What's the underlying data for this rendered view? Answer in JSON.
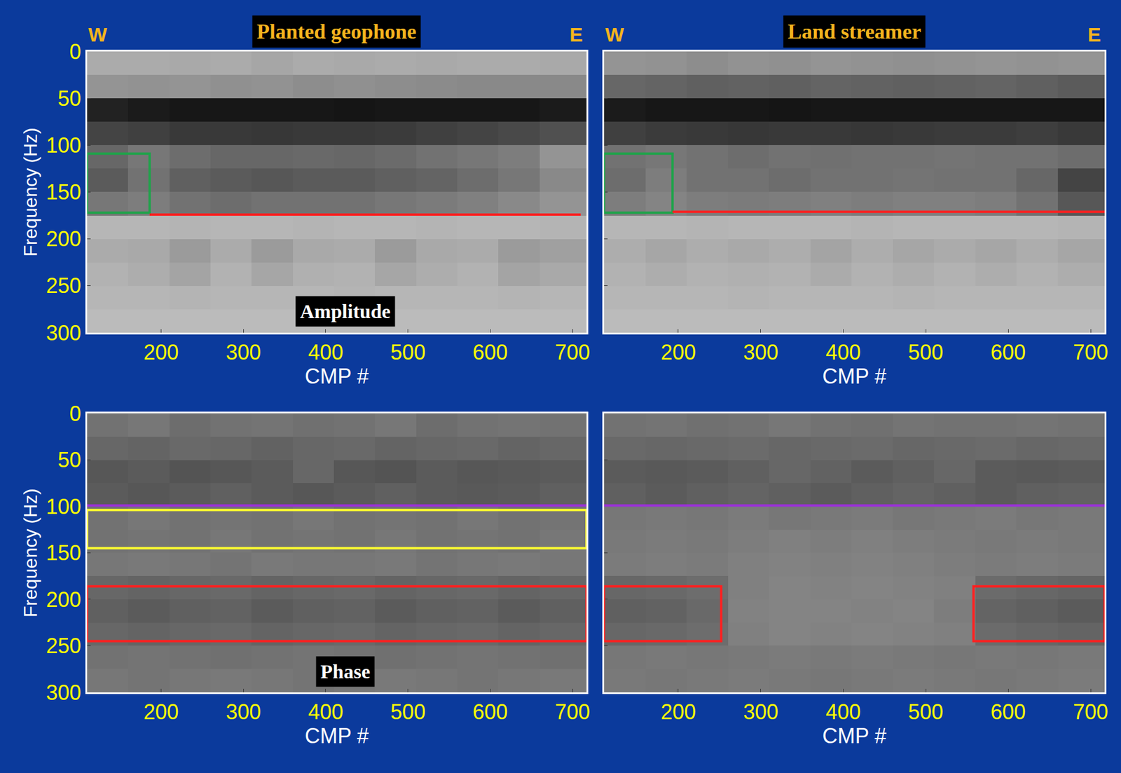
{
  "chart_data": [
    {
      "type": "heatmap",
      "title": "Planted geophone",
      "direction_labels": [
        "W",
        "E"
      ],
      "panel_label": "Amplitude",
      "xlabel": "CMP #",
      "ylabel": "Frequency (Hz)",
      "xlim": [
        110,
        717
      ],
      "ylim": [
        300,
        0
      ],
      "xticks": [
        200,
        300,
        400,
        500,
        600,
        700
      ],
      "yticks": [
        0,
        50,
        100,
        150,
        200,
        250,
        300
      ],
      "grid": false,
      "zlim": [
        0,
        1
      ],
      "cmp_edges": [
        110,
        160,
        210,
        260,
        310,
        360,
        410,
        460,
        510,
        560,
        610,
        660,
        717
      ],
      "freq_edges": [
        0,
        25,
        50,
        75,
        100,
        125,
        150,
        175,
        200,
        225,
        250,
        275,
        300
      ],
      "cells": [
        [
          0.25,
          0.25,
          0.26,
          0.25,
          0.27,
          0.25,
          0.26,
          0.25,
          0.26,
          0.25,
          0.25,
          0.26
        ],
        [
          0.35,
          0.36,
          0.35,
          0.37,
          0.36,
          0.38,
          0.37,
          0.38,
          0.39,
          0.4,
          0.4,
          0.4
        ],
        [
          0.85,
          0.88,
          0.9,
          0.9,
          0.9,
          0.9,
          0.91,
          0.9,
          0.9,
          0.9,
          0.9,
          0.88
        ],
        [
          0.7,
          0.72,
          0.75,
          0.75,
          0.76,
          0.75,
          0.75,
          0.74,
          0.72,
          0.7,
          0.68,
          0.65
        ],
        [
          0.55,
          0.48,
          0.52,
          0.55,
          0.55,
          0.54,
          0.55,
          0.53,
          0.5,
          0.48,
          0.45,
          0.35
        ],
        [
          0.6,
          0.5,
          0.58,
          0.6,
          0.62,
          0.6,
          0.6,
          0.58,
          0.56,
          0.52,
          0.48,
          0.4
        ],
        [
          0.48,
          0.45,
          0.5,
          0.52,
          0.5,
          0.5,
          0.5,
          0.48,
          0.46,
          0.44,
          0.4,
          0.35
        ],
        [
          0.2,
          0.2,
          0.21,
          0.2,
          0.2,
          0.21,
          0.2,
          0.2,
          0.21,
          0.2,
          0.2,
          0.21
        ],
        [
          0.25,
          0.26,
          0.32,
          0.25,
          0.32,
          0.26,
          0.25,
          0.32,
          0.26,
          0.25,
          0.32,
          0.3
        ],
        [
          0.22,
          0.24,
          0.28,
          0.22,
          0.27,
          0.23,
          0.22,
          0.27,
          0.24,
          0.22,
          0.28,
          0.26
        ],
        [
          0.2,
          0.2,
          0.21,
          0.2,
          0.2,
          0.2,
          0.21,
          0.2,
          0.2,
          0.2,
          0.21,
          0.2
        ],
        [
          0.18,
          0.18,
          0.18,
          0.18,
          0.18,
          0.18,
          0.18,
          0.18,
          0.18,
          0.18,
          0.18,
          0.18
        ]
      ],
      "boxes": [
        {
          "x": [
            110,
            186
          ],
          "y": [
            109,
            172
          ],
          "color": "#1fa34a"
        }
      ],
      "lines": [
        {
          "x": [
            186,
            710
          ],
          "y": 174,
          "color": "#ff2020"
        }
      ]
    },
    {
      "type": "heatmap",
      "title": "Land streamer",
      "direction_labels": [
        "W",
        "E"
      ],
      "xlabel": "CMP #",
      "xlim": [
        110,
        717
      ],
      "ylim": [
        300,
        0
      ],
      "xticks": [
        200,
        300,
        400,
        500,
        600,
        700
      ],
      "yticks": [
        0,
        50,
        100,
        150,
        200,
        250,
        300
      ],
      "tick_labels": "x",
      "grid": false,
      "zlim": [
        0,
        1
      ],
      "cmp_edges": [
        110,
        160,
        210,
        260,
        310,
        360,
        410,
        460,
        510,
        560,
        610,
        660,
        717
      ],
      "freq_edges": [
        0,
        25,
        50,
        75,
        100,
        125,
        150,
        175,
        200,
        225,
        250,
        275,
        300
      ],
      "cells": [
        [
          0.35,
          0.36,
          0.38,
          0.36,
          0.37,
          0.35,
          0.36,
          0.37,
          0.36,
          0.35,
          0.36,
          0.35
        ],
        [
          0.55,
          0.56,
          0.58,
          0.57,
          0.58,
          0.56,
          0.57,
          0.58,
          0.57,
          0.56,
          0.58,
          0.6
        ],
        [
          0.88,
          0.9,
          0.9,
          0.9,
          0.91,
          0.9,
          0.9,
          0.9,
          0.9,
          0.9,
          0.9,
          0.9
        ],
        [
          0.72,
          0.74,
          0.75,
          0.76,
          0.75,
          0.75,
          0.76,
          0.75,
          0.74,
          0.74,
          0.73,
          0.75
        ],
        [
          0.5,
          0.48,
          0.5,
          0.52,
          0.5,
          0.51,
          0.5,
          0.5,
          0.49,
          0.5,
          0.5,
          0.52
        ],
        [
          0.52,
          0.45,
          0.5,
          0.5,
          0.52,
          0.5,
          0.5,
          0.49,
          0.5,
          0.5,
          0.55,
          0.7
        ],
        [
          0.45,
          0.42,
          0.45,
          0.46,
          0.45,
          0.44,
          0.45,
          0.44,
          0.44,
          0.45,
          0.5,
          0.62
        ],
        [
          0.2,
          0.2,
          0.21,
          0.2,
          0.2,
          0.2,
          0.21,
          0.2,
          0.2,
          0.2,
          0.2,
          0.21
        ],
        [
          0.24,
          0.27,
          0.24,
          0.26,
          0.24,
          0.28,
          0.24,
          0.27,
          0.25,
          0.27,
          0.24,
          0.27
        ],
        [
          0.22,
          0.24,
          0.22,
          0.23,
          0.22,
          0.25,
          0.22,
          0.24,
          0.22,
          0.24,
          0.22,
          0.24
        ],
        [
          0.2,
          0.2,
          0.2,
          0.21,
          0.2,
          0.2,
          0.2,
          0.21,
          0.2,
          0.2,
          0.2,
          0.2
        ],
        [
          0.18,
          0.18,
          0.18,
          0.18,
          0.18,
          0.18,
          0.18,
          0.18,
          0.18,
          0.18,
          0.18,
          0.18
        ]
      ],
      "boxes": [
        {
          "x": [
            110,
            193
          ],
          "y": [
            109,
            172
          ],
          "color": "#1fa34a"
        }
      ],
      "lines": [
        {
          "x": [
            193,
            717
          ],
          "y": 171,
          "color": "#ff2020"
        }
      ]
    },
    {
      "type": "heatmap",
      "panel_label": "Phase",
      "xlabel": "CMP #",
      "ylabel": "Frequency (Hz)",
      "xlim": [
        110,
        717
      ],
      "ylim": [
        300,
        0
      ],
      "xticks": [
        200,
        300,
        400,
        500,
        600,
        700
      ],
      "yticks": [
        0,
        50,
        100,
        150,
        200,
        250,
        300
      ],
      "grid": false,
      "zlim": [
        0,
        1
      ],
      "cmp_edges": [
        110,
        160,
        210,
        260,
        310,
        360,
        410,
        460,
        510,
        560,
        610,
        660,
        717
      ],
      "freq_edges": [
        0,
        25,
        50,
        75,
        100,
        125,
        150,
        175,
        200,
        225,
        250,
        275,
        300
      ],
      "cells": [
        [
          0.5,
          0.48,
          0.52,
          0.5,
          0.49,
          0.51,
          0.5,
          0.48,
          0.52,
          0.5,
          0.49,
          0.5
        ],
        [
          0.55,
          0.56,
          0.54,
          0.55,
          0.57,
          0.55,
          0.54,
          0.56,
          0.55,
          0.54,
          0.56,
          0.55
        ],
        [
          0.62,
          0.6,
          0.63,
          0.62,
          0.6,
          0.55,
          0.62,
          0.63,
          0.6,
          0.62,
          0.61,
          0.6
        ],
        [
          0.6,
          0.62,
          0.6,
          0.58,
          0.6,
          0.62,
          0.6,
          0.58,
          0.6,
          0.61,
          0.6,
          0.58
        ],
        [
          0.5,
          0.48,
          0.5,
          0.49,
          0.5,
          0.48,
          0.5,
          0.49,
          0.5,
          0.48,
          0.5,
          0.49
        ],
        [
          0.5,
          0.49,
          0.5,
          0.48,
          0.5,
          0.49,
          0.5,
          0.48,
          0.5,
          0.49,
          0.5,
          0.48
        ],
        [
          0.48,
          0.47,
          0.48,
          0.49,
          0.47,
          0.48,
          0.48,
          0.47,
          0.49,
          0.48,
          0.47,
          0.48
        ],
        [
          0.55,
          0.56,
          0.55,
          0.54,
          0.56,
          0.55,
          0.54,
          0.56,
          0.55,
          0.54,
          0.56,
          0.55
        ],
        [
          0.58,
          0.6,
          0.58,
          0.57,
          0.6,
          0.58,
          0.57,
          0.6,
          0.58,
          0.57,
          0.6,
          0.58
        ],
        [
          0.55,
          0.56,
          0.55,
          0.54,
          0.56,
          0.55,
          0.54,
          0.56,
          0.55,
          0.54,
          0.56,
          0.55
        ],
        [
          0.5,
          0.49,
          0.5,
          0.51,
          0.5,
          0.49,
          0.5,
          0.51,
          0.5,
          0.49,
          0.5,
          0.51
        ],
        [
          0.48,
          0.49,
          0.48,
          0.47,
          0.48,
          0.49,
          0.48,
          0.47,
          0.48,
          0.49,
          0.48,
          0.47
        ]
      ],
      "boxes": [
        {
          "x": [
            110,
            717
          ],
          "y": [
            104,
            145
          ],
          "color": "#ffff30"
        },
        {
          "x": [
            110,
            717
          ],
          "y": [
            186,
            245
          ],
          "color": "#ff2020"
        }
      ],
      "lines": [
        {
          "x": [
            110,
            717
          ],
          "y": 99,
          "color": "#9b30d9"
        }
      ]
    },
    {
      "type": "heatmap",
      "xlabel": "CMP #",
      "xlim": [
        110,
        717
      ],
      "ylim": [
        300,
        0
      ],
      "xticks": [
        200,
        300,
        400,
        500,
        600,
        700
      ],
      "yticks": [
        0,
        50,
        100,
        150,
        200,
        250,
        300
      ],
      "tick_labels": "x",
      "grid": false,
      "zlim": [
        0,
        1
      ],
      "cmp_edges": [
        110,
        160,
        210,
        260,
        310,
        360,
        410,
        460,
        510,
        560,
        610,
        660,
        717
      ],
      "freq_edges": [
        0,
        25,
        50,
        75,
        100,
        125,
        150,
        175,
        200,
        225,
        250,
        275,
        300
      ],
      "cells": [
        [
          0.5,
          0.49,
          0.51,
          0.5,
          0.48,
          0.5,
          0.51,
          0.49,
          0.5,
          0.5,
          0.49,
          0.5
        ],
        [
          0.54,
          0.55,
          0.54,
          0.53,
          0.55,
          0.54,
          0.53,
          0.55,
          0.54,
          0.53,
          0.55,
          0.54
        ],
        [
          0.6,
          0.61,
          0.6,
          0.58,
          0.55,
          0.57,
          0.6,
          0.58,
          0.55,
          0.6,
          0.61,
          0.6
        ],
        [
          0.58,
          0.6,
          0.58,
          0.56,
          0.58,
          0.6,
          0.58,
          0.56,
          0.58,
          0.6,
          0.58,
          0.57
        ],
        [
          0.48,
          0.47,
          0.48,
          0.46,
          0.48,
          0.47,
          0.46,
          0.48,
          0.47,
          0.46,
          0.48,
          0.47
        ],
        [
          0.47,
          0.46,
          0.47,
          0.45,
          0.44,
          0.45,
          0.44,
          0.45,
          0.46,
          0.47,
          0.46,
          0.47
        ],
        [
          0.46,
          0.45,
          0.46,
          0.44,
          0.43,
          0.44,
          0.43,
          0.44,
          0.45,
          0.46,
          0.45,
          0.46
        ],
        [
          0.55,
          0.54,
          0.52,
          0.44,
          0.42,
          0.43,
          0.42,
          0.43,
          0.44,
          0.53,
          0.55,
          0.56
        ],
        [
          0.58,
          0.57,
          0.54,
          0.43,
          0.42,
          0.42,
          0.43,
          0.42,
          0.45,
          0.56,
          0.58,
          0.6
        ],
        [
          0.55,
          0.54,
          0.52,
          0.44,
          0.42,
          0.43,
          0.42,
          0.43,
          0.44,
          0.53,
          0.55,
          0.56
        ],
        [
          0.48,
          0.47,
          0.48,
          0.47,
          0.46,
          0.47,
          0.46,
          0.47,
          0.48,
          0.47,
          0.48,
          0.47
        ],
        [
          0.47,
          0.48,
          0.47,
          0.46,
          0.47,
          0.48,
          0.47,
          0.46,
          0.47,
          0.48,
          0.47,
          0.46
        ]
      ],
      "boxes": [
        {
          "x": [
            110,
            252
          ],
          "y": [
            186,
            245
          ],
          "color": "#ff2020"
        },
        {
          "x": [
            558,
            717
          ],
          "y": [
            186,
            245
          ],
          "color": "#ff2020"
        }
      ],
      "lines": [
        {
          "x": [
            110,
            717
          ],
          "y": 99,
          "color": "#9b30d9"
        }
      ]
    }
  ]
}
